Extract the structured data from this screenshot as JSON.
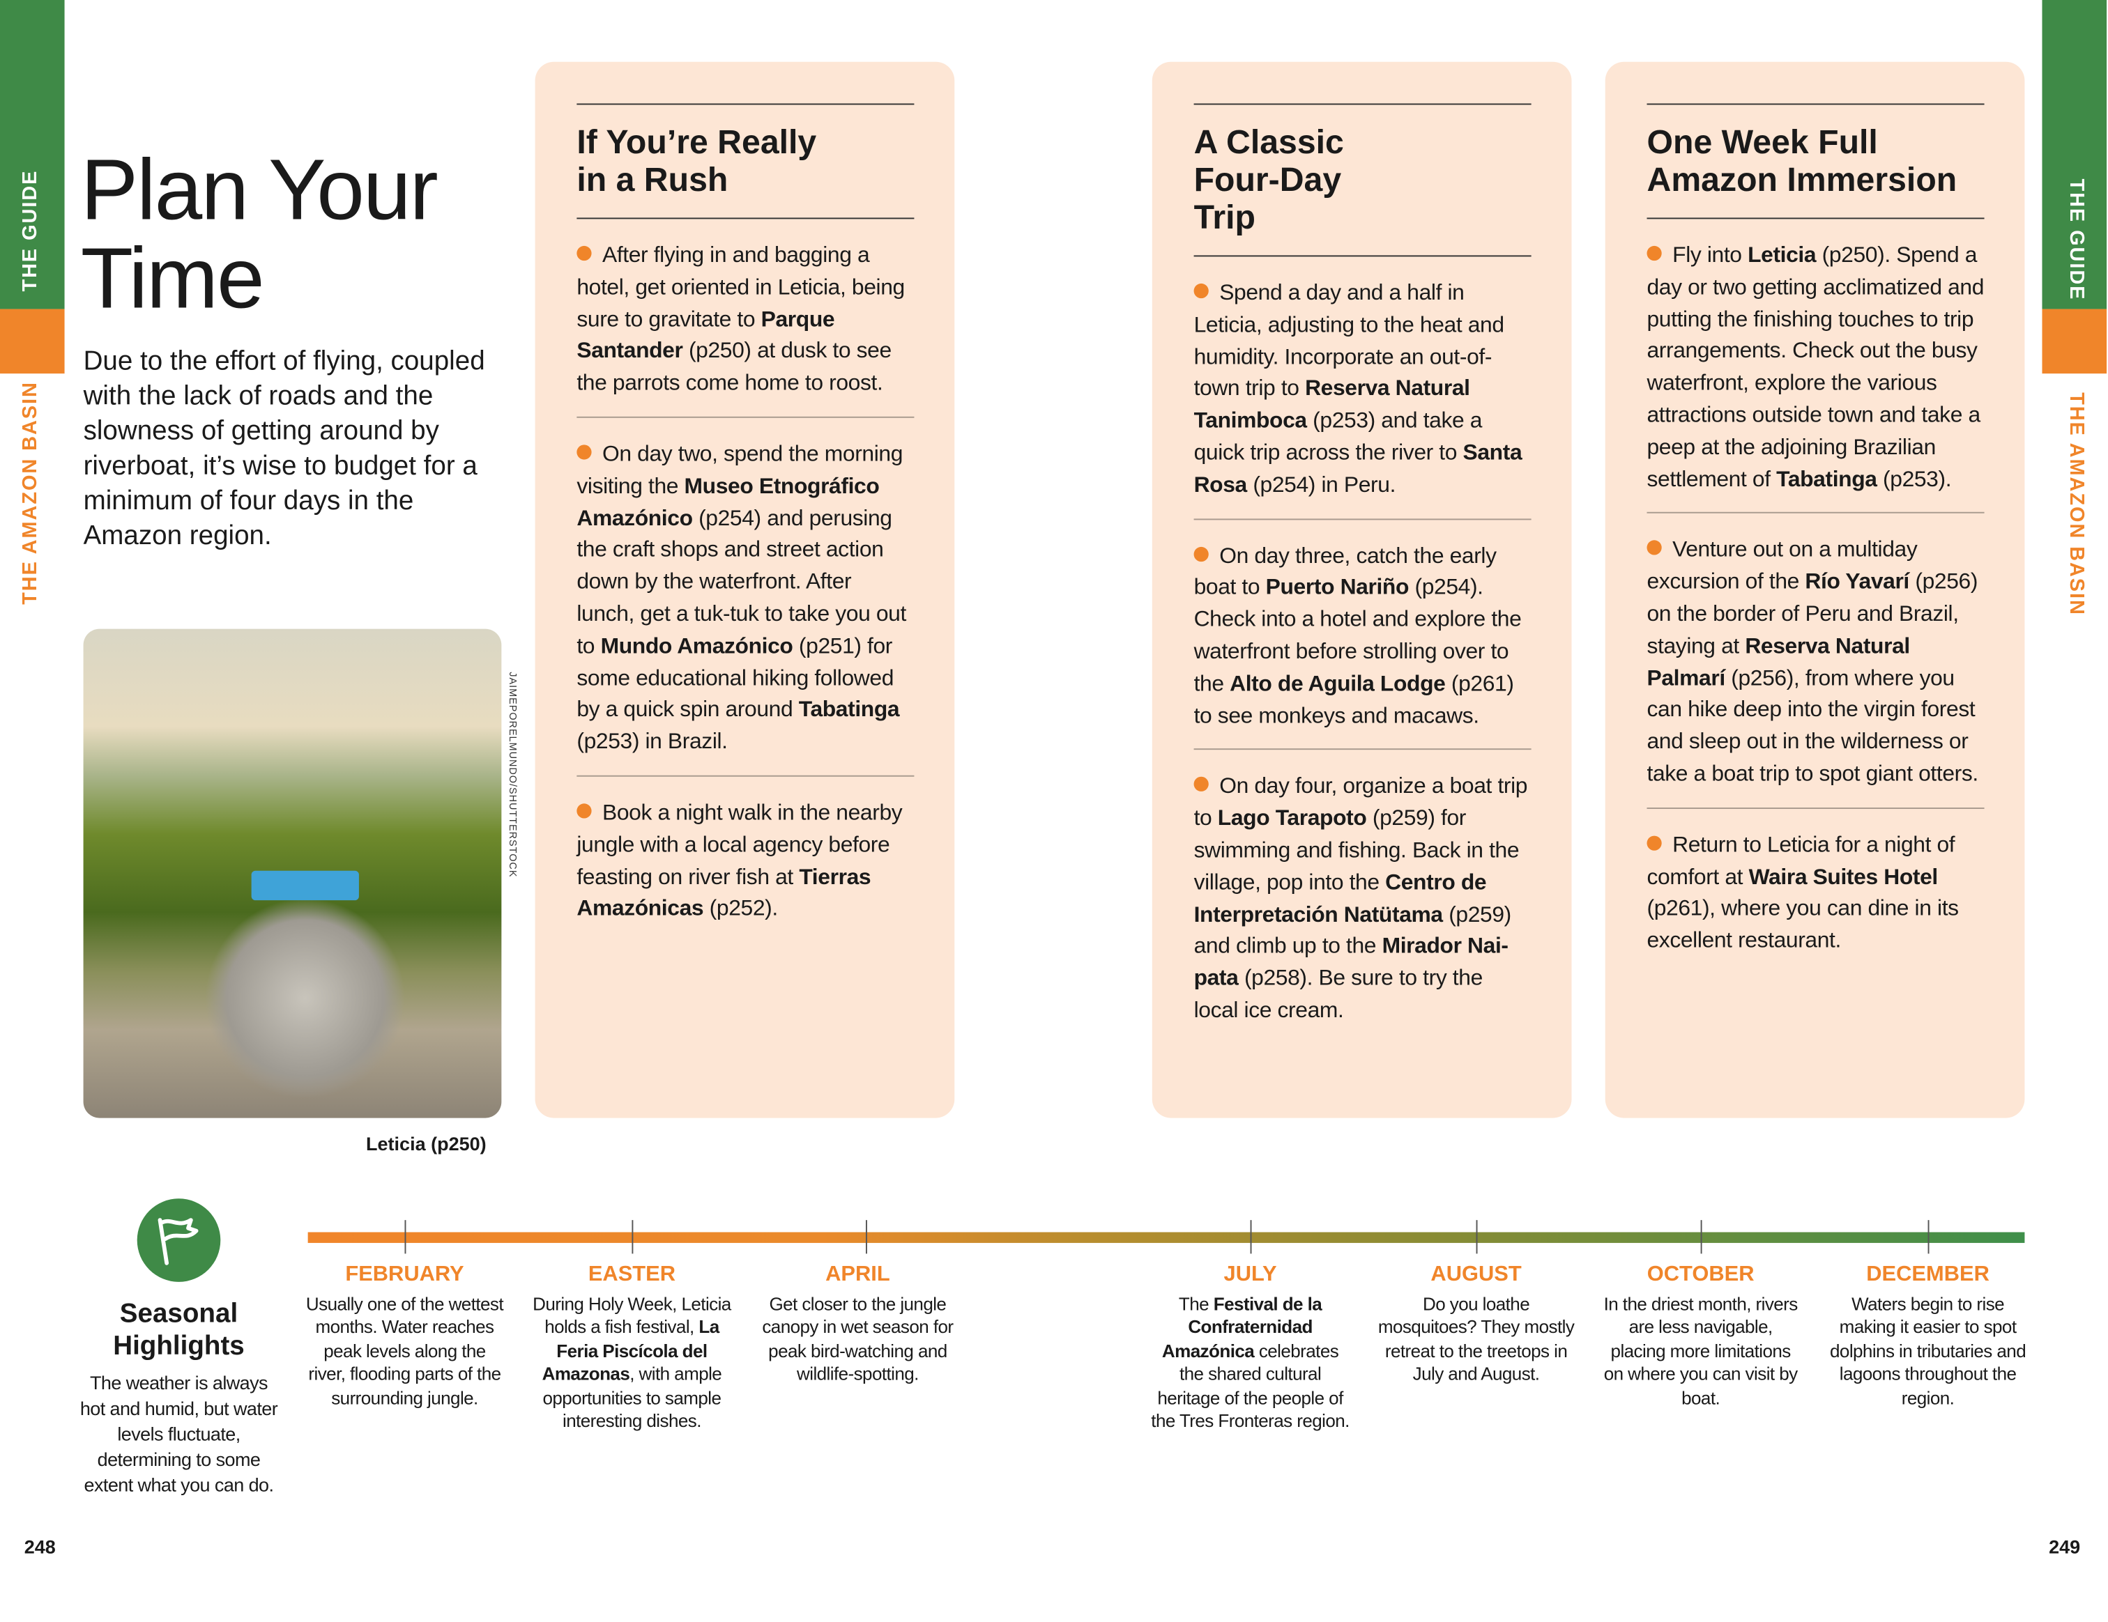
{
  "side_tabs": {
    "section": "THE GUIDE",
    "region": "THE AMAZON BASIN"
  },
  "colors": {
    "green": "#3f8a47",
    "orange": "#f0852a",
    "card": "#fde6d5"
  },
  "title": "Plan Your Time",
  "intro": "Due to the effort of flying, coupled with the lack of roads and the slowness of getting around by riverboat, it’s wise to budget for a minimum of four days in the Amazon region.",
  "photo": {
    "credit": "JAIMEPORELMUNDO/SHUTTERSTOCK",
    "caption": "Leticia (p250)"
  },
  "cards": [
    {
      "title": "If You’re Really in a Rush",
      "paragraphs": [
        [
          {
            "t": "After flying in and bagging a hotel, get oriented in Leticia, being sure to gravitate to "
          },
          {
            "t": "Parque Santander",
            "b": true
          },
          {
            "t": " (p250) at dusk to see the parrots come home to roost."
          }
        ],
        [
          {
            "t": "On day two, spend the morning visiting the "
          },
          {
            "t": "Museo Etnográfico Amazónico",
            "b": true
          },
          {
            "t": " (p254) and perusing the craft shops and street action down by the waterfront. After lunch, get a tuk-tuk to take you out to "
          },
          {
            "t": "Mundo Amazónico",
            "b": true
          },
          {
            "t": " (p251) for some educational hiking followed by a quick spin around "
          },
          {
            "t": "Tabatinga",
            "b": true
          },
          {
            "t": " (p253) in Brazil."
          }
        ],
        [
          {
            "t": "Book a night walk in the nearby jungle with a local agency before feasting on river fish at "
          },
          {
            "t": "Tierras Amazónicas",
            "b": true
          },
          {
            "t": " (p252)."
          }
        ]
      ]
    },
    {
      "title": "A Classic Four-Day Trip",
      "paragraphs": [
        [
          {
            "t": "Spend a day and a half in Leticia, adjusting to the heat and humidity. Incorporate an out-of-town trip to "
          },
          {
            "t": "Reserva Natural Tanimboca",
            "b": true
          },
          {
            "t": " (p253) and take a quick trip across the river to "
          },
          {
            "t": "Santa Rosa",
            "b": true
          },
          {
            "t": " (p254) in Peru."
          }
        ],
        [
          {
            "t": "On day three, catch the early boat to "
          },
          {
            "t": "Puerto Nariño",
            "b": true
          },
          {
            "t": " (p254). Check into a hotel and explore the waterfront before strolling over to the "
          },
          {
            "t": "Alto de Aguila Lodge",
            "b": true
          },
          {
            "t": " (p261) to see monkeys and macaws."
          }
        ],
        [
          {
            "t": "On day four, organize a boat trip to "
          },
          {
            "t": "Lago Tarapoto",
            "b": true
          },
          {
            "t": " (p259) for swimming and fishing. Back in the village, pop into the "
          },
          {
            "t": "Centro de Interpretación Natütama",
            "b": true
          },
          {
            "t": " (p259) and climb up to the "
          },
          {
            "t": "Mirador Nai-pata",
            "b": true
          },
          {
            "t": " (p258). Be sure to try the local ice cream."
          }
        ]
      ]
    },
    {
      "title": "One Week Full Amazon Immersion",
      "paragraphs": [
        [
          {
            "t": "Fly into "
          },
          {
            "t": "Leticia",
            "b": true
          },
          {
            "t": " (p250). Spend a day or two getting acclimatized and putting the finishing touches to trip arrangements. Check out the busy waterfront, explore the various attractions outside town and take a peep at the adjoining Brazilian settlement of "
          },
          {
            "t": "Tabatinga",
            "b": true
          },
          {
            "t": " (p253)."
          }
        ],
        [
          {
            "t": "Venture out on a multiday excursion of the "
          },
          {
            "t": "Río Yavarí",
            "b": true
          },
          {
            "t": " (p256) on the border of Peru and Brazil, staying at "
          },
          {
            "t": "Reserva Natural Palmarí",
            "b": true
          },
          {
            "t": " (p256), from where you can hike deep into the virgin forest and sleep out in the wilderness or take a boat trip to spot giant otters."
          }
        ],
        [
          {
            "t": "Return to Leticia for a night of comfort at "
          },
          {
            "t": "Waira Suites Hotel",
            "b": true
          },
          {
            "t": " (p261), where you can dine in its excellent restaurant."
          }
        ]
      ]
    }
  ],
  "seasonal": {
    "icon": "flag-icon",
    "title": "Seasonal Highlights",
    "text": "The weather is always hot and humid, but water levels fluctuate, determining to some extent what you can do.",
    "timeline": [
      {
        "label": "FEBRUARY",
        "text": [
          {
            "t": "Usually one of the wettest months. Water reaches peak levels along the river, flooding parts of the surrounding jungle."
          }
        ]
      },
      {
        "label": "EASTER",
        "text": [
          {
            "t": "During Holy Week, Leticia holds a fish festival, "
          },
          {
            "t": "La Feria Piscícola del Amazonas",
            "b": true
          },
          {
            "t": ", with ample opportunities to sample interesting dishes."
          }
        ]
      },
      {
        "label": "APRIL",
        "text": [
          {
            "t": "Get closer to the jungle canopy in wet season for peak bird-watching and wildlife-spotting."
          }
        ]
      },
      {
        "label": "JULY",
        "text": [
          {
            "t": "The "
          },
          {
            "t": "Festival de la Confraternidad Amazónica",
            "b": true
          },
          {
            "t": " celebrates the shared cultural heritage of the people of the Tres Fronteras region."
          }
        ]
      },
      {
        "label": "AUGUST",
        "text": [
          {
            "t": "Do you loathe mosquitoes? They mostly retreat to the treetops in July and August."
          }
        ]
      },
      {
        "label": "OCTOBER",
        "text": [
          {
            "t": "In the driest month, rivers are less navigable, placing more limitations on where you can visit by boat."
          }
        ]
      },
      {
        "label": "DECEMBER",
        "text": [
          {
            "t": "Waters begin to rise making it easier to spot dolphins in tributaries and lagoons throughout the region."
          }
        ]
      }
    ]
  },
  "page_numbers": {
    "left": "248",
    "right": "249"
  }
}
